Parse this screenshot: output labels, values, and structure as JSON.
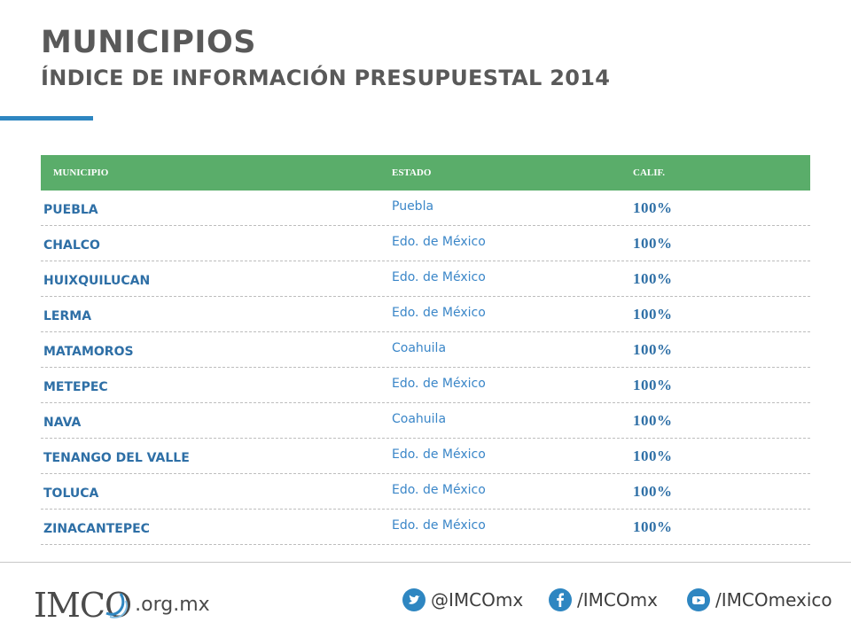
{
  "slide": {
    "title": "MUNICIPIOS",
    "subtitle": "ÍNDICE DE INFORMACIÓN PRESUPUESTAL 2014"
  },
  "table": {
    "headers": [
      "MUNICIPIO",
      "ESTADO",
      "CALIF."
    ],
    "rows": [
      {
        "municipio": "PUEBLA",
        "estado": "Puebla",
        "calif": "100%"
      },
      {
        "municipio": "CHALCO",
        "estado": "Edo. de México",
        "calif": "100%"
      },
      {
        "municipio": "HUIXQUILUCAN",
        "estado": "Edo. de México",
        "calif": "100%"
      },
      {
        "municipio": "LERMA",
        "estado": "Edo. de México",
        "calif": "100%"
      },
      {
        "municipio": "MATAMOROS",
        "estado": "Coahuila",
        "calif": "100%"
      },
      {
        "municipio": "METEPEC",
        "estado": "Edo. de México",
        "calif": "100%"
      },
      {
        "municipio": "NAVA",
        "estado": "Coahuila",
        "calif": "100%"
      },
      {
        "municipio": "TENANGO DEL VALLE",
        "estado": "Edo. de México",
        "calif": "100%"
      },
      {
        "municipio": "TOLUCA",
        "estado": "Edo. de México",
        "calif": "100%"
      },
      {
        "municipio": "ZINACANTEPEC",
        "estado": "Edo. de México",
        "calif": "100%"
      }
    ]
  },
  "footer": {
    "logo_text": "IMCO",
    "domain": ".org.mx",
    "twitter": "@IMCOmx",
    "facebook": "/IMCOmx",
    "youtube": "/IMCOmexico"
  },
  "colors": {
    "header_green": "#5aad6a",
    "accent_blue": "#2e86c1",
    "title_gray": "#595959"
  },
  "icons": [
    "twitter-icon",
    "facebook-icon",
    "youtube-icon"
  ]
}
